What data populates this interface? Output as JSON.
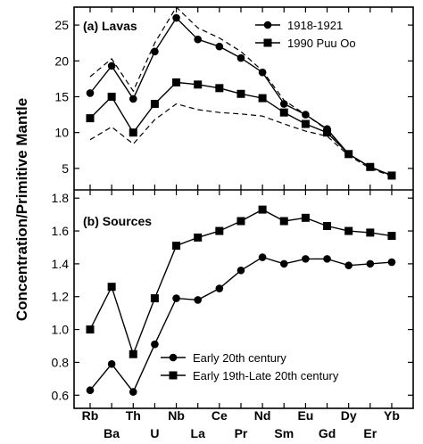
{
  "chart_data": {
    "type": "line",
    "ylabel": "Concentration/Primitive Mantle",
    "categories": [
      "Rb",
      "Ba",
      "Th",
      "U",
      "Nb",
      "La",
      "Ce",
      "Pr",
      "Nd",
      "Sm",
      "Eu",
      "Gd",
      "Dy",
      "Er",
      "Yb"
    ],
    "panels": [
      {
        "title": "(a) Lavas",
        "ylim": [
          2,
          27.5
        ],
        "yticks": [
          5,
          10,
          15,
          20,
          25
        ],
        "legend_position": "top-right",
        "series": [
          {
            "name": "1918-1921",
            "marker": "circle",
            "line": "solid",
            "values": [
              15.5,
              19.3,
              14.7,
              21.3,
              26.0,
              23.0,
              22.0,
              20.4,
              18.4,
              14.0,
              12.5,
              10.5,
              7.0,
              5.2,
              4.0
            ]
          },
          {
            "name": "1990 Puu Oo",
            "marker": "square",
            "line": "solid",
            "values": [
              12.0,
              15.0,
              10.0,
              14.0,
              17.0,
              16.7,
              16.2,
              15.4,
              14.8,
              12.8,
              11.2,
              10.0,
              7.0,
              5.2,
              4.0
            ]
          },
          {
            "name": "",
            "marker": "none",
            "line": "dashed",
            "values": [
              17.8,
              20.3,
              15.8,
              22.5,
              27.5,
              24.6,
              23.2,
              21.3,
              18.6,
              14.5,
              12.5,
              10.4,
              7.0,
              5.2,
              4.0
            ]
          },
          {
            "name": "",
            "marker": "none",
            "line": "dashed",
            "values": [
              9.0,
              10.8,
              8.4,
              11.8,
              14.0,
              13.2,
              12.8,
              12.6,
              12.3,
              11.2,
              10.2,
              9.5,
              6.8,
              5.0,
              3.9
            ]
          }
        ]
      },
      {
        "title": "(b) Sources",
        "ylim": [
          0.52,
          1.85
        ],
        "yticks": [
          0.6,
          0.8,
          1.0,
          1.2,
          1.4,
          1.6,
          1.8
        ],
        "legend_position": "bottom-center",
        "series": [
          {
            "name": "Early 20th century",
            "marker": "circle",
            "line": "solid",
            "values": [
              0.63,
              0.79,
              0.62,
              0.91,
              1.19,
              1.18,
              1.25,
              1.36,
              1.44,
              1.4,
              1.43,
              1.43,
              1.39,
              1.4,
              1.41
            ]
          },
          {
            "name": "Early 19th-Late 20th century",
            "marker": "square",
            "line": "solid",
            "values": [
              1.0,
              1.26,
              0.85,
              1.19,
              1.51,
              1.56,
              1.6,
              1.66,
              1.73,
              1.66,
              1.68,
              1.63,
              1.6,
              1.59,
              1.57
            ]
          }
        ]
      }
    ]
  }
}
